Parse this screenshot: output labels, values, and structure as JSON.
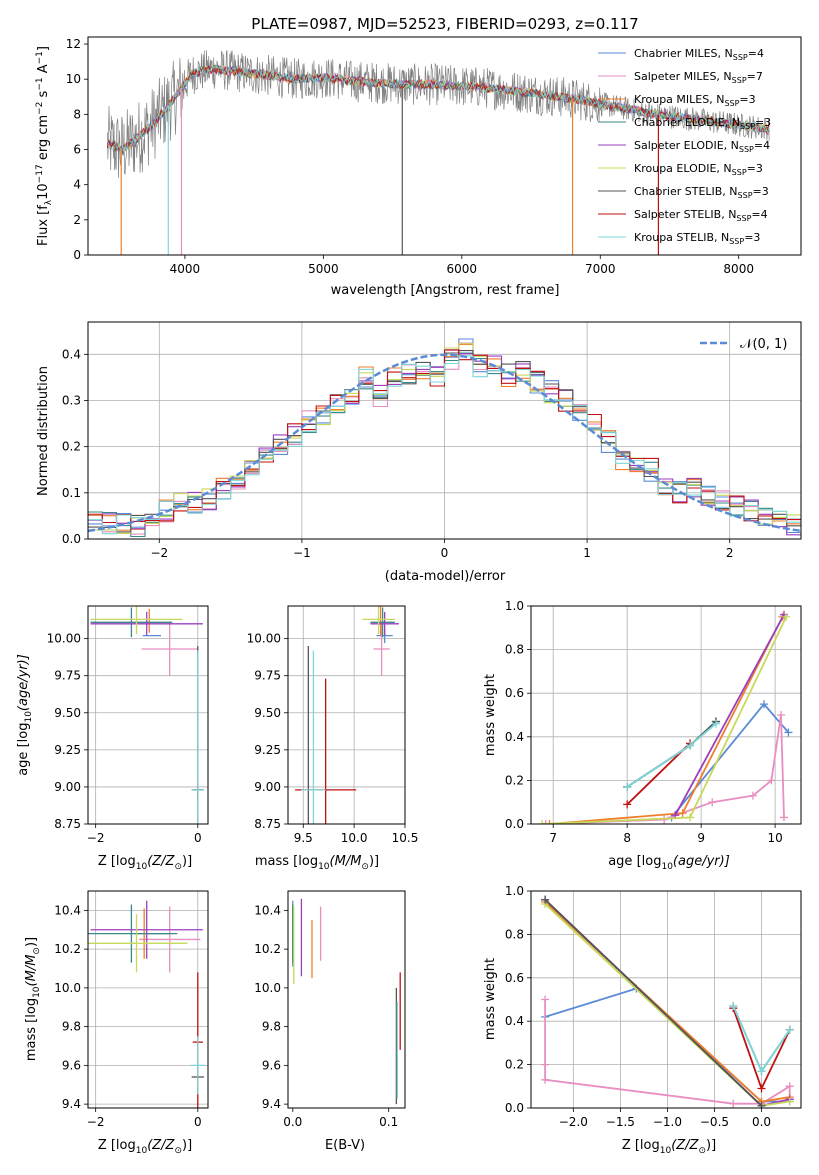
{
  "title": "PLATE=0987, MJD=52523, FIBERID=0293, z=0.117",
  "colors": {
    "chabrier_miles": "#5b8bd6",
    "salpeter_miles": "#e88ec0",
    "kroupa_miles": "#f07f2a",
    "chabrier_elodie": "#3a8a8a",
    "salpeter_elodie": "#9c3fbf",
    "kroupa_elodie": "#c8d85a",
    "chabrier_stelib": "#555555",
    "salpeter_stelib": "#c01010",
    "kroupa_stelib": "#7fd6d8",
    "data_grey": "#808080",
    "gaussian": "#5b8bd6"
  },
  "chart_data": [
    {
      "id": "spectrum",
      "type": "line",
      "xlabel": "wavelength [Angstrom, rest frame]",
      "ylabel_pre": "Flux [f",
      "ylabel_sub": "λ",
      "ylabel_mid": "10",
      "ylabel_sup1": "−17",
      "ylabel_post": " erg cm",
      "ylabel_sup2": "−2",
      "ylabel_post2": " s",
      "ylabel_sup3": "−1",
      "ylabel_post3": " A",
      "ylabel_sup4": "−1",
      "ylabel_end": "]",
      "xlim": [
        3300,
        8450
      ],
      "ylim": [
        0,
        12.4
      ],
      "xticks": [
        4000,
        5000,
        6000,
        7000,
        8000
      ],
      "yticks": [
        0,
        2,
        4,
        6,
        8,
        10,
        12
      ],
      "series_shape": {
        "x": [
          3450,
          3550,
          3650,
          3750,
          3850,
          3950,
          4050,
          4200,
          4400,
          4600,
          4800,
          5000,
          5200,
          5400,
          5600,
          5800,
          6000,
          6200,
          6400,
          6600,
          6800,
          7000,
          7200,
          7400,
          7600,
          7800,
          8000,
          8200
        ],
        "y": [
          6.3,
          6.0,
          6.6,
          7.3,
          8.2,
          9.2,
          10.3,
          10.6,
          10.4,
          10.2,
          10.0,
          10.1,
          9.9,
          9.8,
          9.7,
          9.7,
          9.6,
          9.5,
          9.3,
          9.1,
          8.9,
          8.6,
          8.3,
          8.0,
          7.8,
          7.6,
          7.4,
          7.2
        ]
      },
      "legend": [
        {
          "key": "chabrier_miles",
          "pre": "Chabrier MILES, N",
          "sub": "SSP",
          "post": "=4"
        },
        {
          "key": "salpeter_miles",
          "pre": "Salpeter MILES, N",
          "sub": "SSP",
          "post": "=7"
        },
        {
          "key": "kroupa_miles",
          "pre": "Kroupa MILES, N",
          "sub": "SSP",
          "post": "=3"
        },
        {
          "key": "chabrier_elodie",
          "pre": "Chabrier ELODIE, N",
          "sub": "SSP",
          "post": "=3"
        },
        {
          "key": "salpeter_elodie",
          "pre": "Salpeter ELODIE, N",
          "sub": "SSP",
          "post": "=4"
        },
        {
          "key": "kroupa_elodie",
          "pre": "Kroupa ELODIE, N",
          "sub": "SSP",
          "post": "=3"
        },
        {
          "key": "chabrier_stelib",
          "pre": "Chabrier STELIB, N",
          "sub": "SSP",
          "post": "=3"
        },
        {
          "key": "salpeter_stelib",
          "pre": "Salpeter STELIB, N",
          "sub": "SSP",
          "post": "=4"
        },
        {
          "key": "kroupa_stelib",
          "pre": "Kroupa STELIB, N",
          "sub": "SSP",
          "post": "=3"
        }
      ]
    },
    {
      "id": "residuals",
      "type": "histogram",
      "xlabel": "(data-model)/error",
      "ylabel": "Normed distribution",
      "xlim": [
        -2.5,
        2.5
      ],
      "ylim": [
        0,
        0.47
      ],
      "xticks": [
        -2,
        -1,
        0,
        1,
        2
      ],
      "yticks": [
        0.0,
        0.1,
        0.2,
        0.3,
        0.4
      ],
      "legend_label": "𝒩(0, 1)",
      "bin_edges": [
        -2.5,
        -2.4,
        -2.3,
        -2.2,
        -2.1,
        -2.0,
        -1.9,
        -1.8,
        -1.7,
        -1.6,
        -1.5,
        -1.4,
        -1.3,
        -1.2,
        -1.1,
        -1.0,
        -0.9,
        -0.8,
        -0.7,
        -0.6,
        -0.5,
        -0.4,
        -0.3,
        -0.2,
        -0.1,
        0.0,
        0.1,
        0.2,
        0.3,
        0.4,
        0.5,
        0.6,
        0.7,
        0.8,
        0.9,
        1.0,
        1.1,
        1.2,
        1.3,
        1.4,
        1.5,
        1.6,
        1.7,
        1.8,
        1.9,
        2.0,
        2.1,
        2.2,
        2.3,
        2.4,
        2.5
      ],
      "hist_base": [
        0.04,
        0.035,
        0.032,
        0.03,
        0.045,
        0.06,
        0.075,
        0.08,
        0.085,
        0.11,
        0.13,
        0.15,
        0.175,
        0.205,
        0.225,
        0.255,
        0.27,
        0.29,
        0.305,
        0.35,
        0.31,
        0.35,
        0.36,
        0.37,
        0.35,
        0.39,
        0.41,
        0.375,
        0.38,
        0.355,
        0.36,
        0.34,
        0.32,
        0.3,
        0.27,
        0.25,
        0.21,
        0.17,
        0.16,
        0.15,
        0.12,
        0.1,
        0.11,
        0.09,
        0.08,
        0.07,
        0.06,
        0.05,
        0.04,
        0.03
      ]
    },
    {
      "id": "age_vs_z",
      "type": "errorbar",
      "xlabel_pre": "Z [log",
      "xlabel_sub": "10",
      "xlabel_post": "(Z/Z",
      "xlabel_end": ")]",
      "ylabel_pre": "age  [log",
      "ylabel_sub": "10",
      "ylabel_post": "(age/yr)]",
      "xlim": [
        -2.15,
        0.2
      ],
      "ylim": [
        8.75,
        10.22
      ],
      "xticks": [
        -2,
        0
      ],
      "yticks": [
        8.75,
        9.0,
        9.25,
        9.5,
        9.75,
        10.0
      ],
      "ytick_labels": [
        "8.75",
        "9.00",
        "9.25",
        "9.50",
        "9.75",
        "10.00"
      ],
      "points": [
        {
          "key": "chabrier_miles",
          "x": -0.9,
          "y": 10.02,
          "xerr": 0.18,
          "yerr": 0.0
        },
        {
          "key": "salpeter_miles",
          "x": -0.55,
          "y": 9.93,
          "xerr": 0.55,
          "yerr": 0.18
        },
        {
          "key": "kroupa_miles",
          "x": -0.95,
          "y": 10.12,
          "xerr": 0.0,
          "yerr": 0.08
        },
        {
          "key": "chabrier_elodie",
          "x": -1.3,
          "y": 10.11,
          "xerr": 0.8,
          "yerr": 0.1
        },
        {
          "key": "salpeter_elodie",
          "x": -1.0,
          "y": 10.1,
          "xerr": 1.1,
          "yerr": 0.08
        },
        {
          "key": "kroupa_elodie",
          "x": -1.2,
          "y": 10.13,
          "xerr": 0.9,
          "yerr": 0.1
        },
        {
          "key": "chabrier_stelib",
          "x": 0.0,
          "y": 8.98,
          "xerr": 0.12,
          "yerr": 0.97
        },
        {
          "key": "salpeter_stelib",
          "x": 0.0,
          "y": 8.98,
          "xerr": 0.08,
          "yerr": 0.05
        },
        {
          "key": "kroupa_stelib",
          "x": 0.0,
          "y": 8.98,
          "xerr": 0.12,
          "yerr": 0.94
        }
      ]
    },
    {
      "id": "age_vs_mass",
      "type": "errorbar",
      "xlabel_pre": "mass [log",
      "xlabel_sub": "10",
      "xlabel_post": "(M/M",
      "xlabel_end": ")]",
      "xlim": [
        9.35,
        10.5
      ],
      "ylim": [
        8.75,
        10.22
      ],
      "xticks": [
        9.5,
        10.0,
        10.5
      ],
      "xtick_labels": [
        "9.5",
        "10.0",
        "10.5"
      ],
      "yticks": [
        8.75,
        9.0,
        9.25,
        9.5,
        9.75,
        10.0
      ],
      "ytick_labels": [
        "8.75",
        "9.00",
        "9.25",
        "9.50",
        "9.75",
        "10.00"
      ],
      "points": [
        {
          "key": "chabrier_miles",
          "x": 10.3,
          "y": 10.02,
          "xerr": 0.08,
          "yerr": 0.05
        },
        {
          "key": "salpeter_miles",
          "x": 10.27,
          "y": 9.93,
          "xerr": 0.08,
          "yerr": 0.18
        },
        {
          "key": "kroupa_miles",
          "x": 10.26,
          "y": 10.12,
          "xerr": 0.0,
          "yerr": 0.1
        },
        {
          "key": "chabrier_elodie",
          "x": 10.28,
          "y": 10.11,
          "xerr": 0.12,
          "yerr": 0.1
        },
        {
          "key": "salpeter_elodie",
          "x": 10.3,
          "y": 10.1,
          "xerr": 0.14,
          "yerr": 0.08
        },
        {
          "key": "kroupa_elodie",
          "x": 10.24,
          "y": 10.13,
          "xerr": 0.16,
          "yerr": 0.1
        },
        {
          "key": "chabrier_stelib",
          "x": 9.55,
          "y": 8.98,
          "xerr": 0.0,
          "yerr": 0.97
        },
        {
          "key": "salpeter_stelib",
          "x": 9.72,
          "y": 8.98,
          "xerr": 0.3,
          "yerr": 0.75
        },
        {
          "key": "kroupa_stelib",
          "x": 9.6,
          "y": 8.98,
          "xerr": 0.12,
          "yerr": 0.94
        }
      ]
    },
    {
      "id": "weight_vs_age",
      "type": "line",
      "xlabel_pre": "age  [log",
      "xlabel_sub": "10",
      "xlabel_post": "(age/yr)]",
      "ylabel": "mass weight",
      "xlim": [
        6.7,
        10.35
      ],
      "ylim": [
        0,
        1.0
      ],
      "xticks": [
        7,
        8,
        9,
        10
      ],
      "yticks": [
        0.0,
        0.2,
        0.4,
        0.6,
        0.8,
        1.0
      ],
      "series": [
        {
          "key": "chabrier_miles",
          "x": [
            8.6,
            9.85,
            10.18
          ],
          "y": [
            0.03,
            0.55,
            0.42
          ]
        },
        {
          "key": "salpeter_miles",
          "x": [
            6.9,
            8.5,
            9.15,
            9.7,
            9.95,
            10.08,
            10.12
          ],
          "y": [
            0.0,
            0.02,
            0.1,
            0.13,
            0.2,
            0.5,
            0.03
          ]
        },
        {
          "key": "kroupa_miles",
          "x": [
            6.95,
            8.75,
            10.1
          ],
          "y": [
            0.0,
            0.05,
            0.95
          ]
        },
        {
          "key": "chabrier_elodie",
          "x": [
            8.0,
            8.85,
            9.2
          ],
          "y": [
            0.17,
            0.36,
            0.47
          ]
        },
        {
          "key": "salpeter_elodie",
          "x": [
            8.65,
            10.12
          ],
          "y": [
            0.04,
            0.96
          ]
        },
        {
          "key": "kroupa_elodie",
          "x": [
            6.85,
            8.85,
            10.15
          ],
          "y": [
            0.0,
            0.03,
            0.95
          ]
        },
        {
          "key": "chabrier_stelib",
          "x": [
            8.0,
            8.85,
            9.2
          ],
          "y": [
            0.17,
            0.36,
            0.47
          ]
        },
        {
          "key": "salpeter_stelib",
          "x": [
            8.0,
            8.85
          ],
          "y": [
            0.09,
            0.37
          ]
        },
        {
          "key": "kroupa_stelib",
          "x": [
            8.0,
            8.85,
            9.2
          ],
          "y": [
            0.17,
            0.36,
            0.46
          ]
        }
      ]
    },
    {
      "id": "mass_vs_z",
      "type": "errorbar",
      "xlabel_pre": "Z [log",
      "xlabel_sub": "10",
      "xlabel_post": "(Z/Z",
      "xlabel_end": ")]",
      "ylabel_pre": "mass [log",
      "ylabel_sub": "10",
      "ylabel_post": "(M/M",
      "ylabel_end": ")]",
      "xlim": [
        -2.15,
        0.2
      ],
      "ylim": [
        9.38,
        10.5
      ],
      "xticks": [
        -2,
        0
      ],
      "yticks": [
        9.4,
        9.6,
        9.8,
        10.0,
        10.2,
        10.4
      ],
      "ytick_labels": [
        "9.4",
        "9.6",
        "9.8",
        "10.0",
        "10.2",
        "10.4"
      ],
      "points": [
        {
          "key": "chabrier_miles",
          "x": -0.9,
          "y": 10.28,
          "xerr": 0.35,
          "yerr": 0.0
        },
        {
          "key": "salpeter_miles",
          "x": -0.55,
          "y": 10.25,
          "xerr": 0.6,
          "yerr": 0.17
        },
        {
          "key": "kroupa_miles",
          "x": -1.05,
          "y": 10.28,
          "xerr": 0.0,
          "yerr": 0.13
        },
        {
          "key": "chabrier_elodie",
          "x": -1.3,
          "y": 10.28,
          "xerr": 0.9,
          "yerr": 0.15
        },
        {
          "key": "salpeter_elodie",
          "x": -1.0,
          "y": 10.3,
          "xerr": 1.1,
          "yerr": 0.15
        },
        {
          "key": "kroupa_elodie",
          "x": -1.2,
          "y": 10.23,
          "xerr": 1.0,
          "yerr": 0.15
        },
        {
          "key": "chabrier_stelib",
          "x": 0.0,
          "y": 9.54,
          "xerr": 0.12,
          "yerr": 0.0
        },
        {
          "key": "salpeter_stelib",
          "x": 0.0,
          "y": 9.72,
          "xerr": 0.1,
          "yerr": 0.36
        },
        {
          "key": "kroupa_stelib",
          "x": 0.0,
          "y": 9.6,
          "xerr": 0.14,
          "yerr": 0.15
        }
      ]
    },
    {
      "id": "mass_vs_ebv",
      "type": "errorbar",
      "xlabel": "E(B-V)",
      "xlim": [
        -0.005,
        0.117
      ],
      "ylim": [
        9.38,
        10.5
      ],
      "xticks": [
        0.0,
        0.1
      ],
      "xtick_labels": [
        "0.0",
        "0.1"
      ],
      "yticks": [
        9.4,
        9.6,
        9.8,
        10.0,
        10.2,
        10.4
      ],
      "ytick_labels": [
        "9.4",
        "9.6",
        "9.8",
        "10.0",
        "10.2",
        "10.4"
      ],
      "points": [
        {
          "key": "chabrier_miles",
          "x": 0.0,
          "y": 10.28,
          "xerr": 0.0,
          "yerr": 0.17
        },
        {
          "key": "salpeter_miles",
          "x": 0.029,
          "y": 10.28,
          "xerr": 0.0,
          "yerr": 0.14
        },
        {
          "key": "kroupa_miles",
          "x": 0.02,
          "y": 10.2,
          "xerr": 0.0,
          "yerr": 0.15
        },
        {
          "key": "chabrier_elodie",
          "x": 0.0,
          "y": 10.28,
          "xerr": 0.0,
          "yerr": 0.15
        },
        {
          "key": "salpeter_elodie",
          "x": 0.009,
          "y": 10.26,
          "xerr": 0.0,
          "yerr": 0.2
        },
        {
          "key": "kroupa_elodie",
          "x": 0.001,
          "y": 10.22,
          "xerr": 0.0,
          "yerr": 0.2
        },
        {
          "key": "chabrier_stelib",
          "x": 0.108,
          "y": 9.7,
          "xerr": 0.0,
          "yerr": 0.3
        },
        {
          "key": "salpeter_stelib",
          "x": 0.112,
          "y": 9.88,
          "xerr": 0.0,
          "yerr": 0.2
        },
        {
          "key": "kroupa_stelib",
          "x": 0.109,
          "y": 9.68,
          "xerr": 0.0,
          "yerr": 0.25
        }
      ]
    },
    {
      "id": "weight_vs_z",
      "type": "line",
      "xlabel_pre": "Z [log",
      "xlabel_sub": "10",
      "xlabel_post": "(Z/Z",
      "xlabel_end": ")]",
      "ylabel": "mass weight",
      "xlim": [
        -2.45,
        0.42
      ],
      "ylim": [
        0,
        1.0
      ],
      "xticks": [
        -2.0,
        -1.5,
        -1.0,
        -0.5,
        0.0
      ],
      "xtick_labels": [
        "−2.0",
        "−1.5",
        "−1.0",
        "−0.5",
        "0.0"
      ],
      "yticks": [
        0.0,
        0.2,
        0.4,
        0.6,
        0.8,
        1.0
      ],
      "series": [
        {
          "key": "chabrier_miles",
          "x": [
            -2.3,
            -1.33,
            0.0,
            0.3
          ],
          "y": [
            0.42,
            0.55,
            0.03,
            0.03
          ]
        },
        {
          "key": "salpeter_miles",
          "x": [
            -2.3,
            -2.3,
            -2.3,
            -0.3,
            0.0,
            0.3,
            0.3
          ],
          "y": [
            0.5,
            0.2,
            0.13,
            0.02,
            0.02,
            0.1,
            0.04
          ]
        },
        {
          "key": "kroupa_miles",
          "x": [
            -2.3,
            0.0,
            0.3
          ],
          "y": [
            0.95,
            0.03,
            0.05
          ]
        },
        {
          "key": "chabrier_elodie",
          "x": [
            -0.3,
            0.0,
            0.3
          ],
          "y": [
            0.47,
            0.17,
            0.36
          ]
        },
        {
          "key": "salpeter_elodie",
          "x": [
            -2.3,
            0.0,
            0.3
          ],
          "y": [
            0.96,
            0.01,
            0.04
          ]
        },
        {
          "key": "kroupa_elodie",
          "x": [
            -2.3,
            0.0,
            0.3
          ],
          "y": [
            0.94,
            0.01,
            0.03
          ]
        },
        {
          "key": "chabrier_stelib",
          "x": [
            -2.3,
            0.0
          ],
          "y": [
            0.96,
            0.01
          ]
        },
        {
          "key": "salpeter_stelib",
          "x": [
            -0.3,
            0.0,
            0.3
          ],
          "y": [
            0.46,
            0.09,
            0.36
          ]
        },
        {
          "key": "kroupa_stelib",
          "x": [
            -0.3,
            0.0,
            0.3
          ],
          "y": [
            0.47,
            0.17,
            0.36
          ]
        }
      ]
    }
  ]
}
